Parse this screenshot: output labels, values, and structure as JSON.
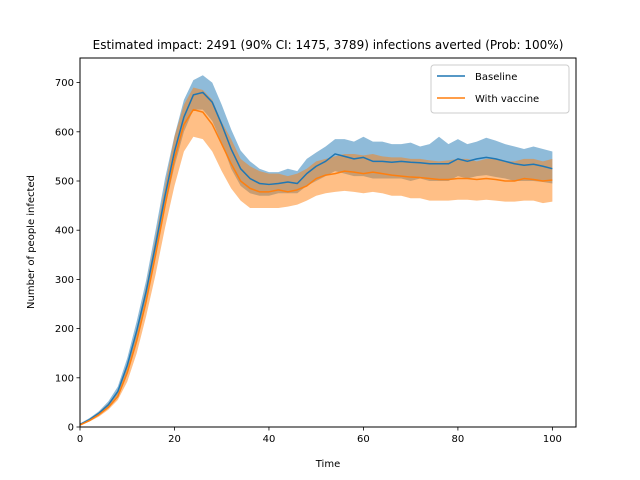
{
  "chart_data": {
    "type": "line",
    "title": "Estimated impact: 2491 (90% CI: 1475, 3789) infections averted (Prob: 100%)",
    "xlabel": "Time",
    "ylabel": "Number of people infected",
    "xlim": [
      0,
      105
    ],
    "ylim": [
      0,
      750
    ],
    "xticks": [
      "0",
      "20",
      "40",
      "60",
      "80",
      "100"
    ],
    "yticks": [
      "0",
      "100",
      "200",
      "300",
      "400",
      "500",
      "600",
      "700"
    ],
    "legend_position": "upper-right",
    "x": [
      0,
      2,
      4,
      6,
      8,
      10,
      12,
      14,
      16,
      18,
      20,
      22,
      24,
      26,
      28,
      30,
      32,
      34,
      36,
      38,
      40,
      42,
      44,
      46,
      48,
      50,
      52,
      54,
      56,
      58,
      60,
      62,
      64,
      66,
      68,
      70,
      72,
      74,
      76,
      78,
      80,
      82,
      84,
      86,
      88,
      90,
      92,
      94,
      96,
      98,
      100
    ],
    "series": [
      {
        "name": "Baseline",
        "color": "#1f77b4",
        "values": [
          5,
          15,
          28,
          45,
          72,
          125,
          195,
          275,
          370,
          470,
          560,
          630,
          675,
          680,
          660,
          615,
          565,
          525,
          505,
          495,
          493,
          495,
          498,
          495,
          515,
          530,
          540,
          555,
          550,
          545,
          548,
          540,
          540,
          538,
          540,
          538,
          537,
          535,
          535,
          535,
          545,
          540,
          545,
          548,
          545,
          540,
          535,
          532,
          534,
          530,
          525
        ],
        "lower": [
          4,
          13,
          25,
          40,
          65,
          112,
          178,
          255,
          345,
          445,
          530,
          600,
          645,
          645,
          622,
          577,
          525,
          490,
          475,
          470,
          470,
          475,
          475,
          475,
          490,
          500,
          510,
          520,
          515,
          510,
          510,
          505,
          505,
          505,
          505,
          500,
          505,
          500,
          500,
          500,
          510,
          505,
          510,
          512,
          508,
          505,
          500,
          500,
          500,
          498,
          495
        ],
        "upper": [
          7,
          18,
          32,
          52,
          82,
          140,
          215,
          298,
          400,
          505,
          592,
          665,
          705,
          715,
          700,
          655,
          605,
          562,
          540,
          525,
          518,
          518,
          525,
          520,
          545,
          558,
          570,
          585,
          585,
          580,
          590,
          580,
          580,
          575,
          575,
          578,
          570,
          575,
          590,
          575,
          585,
          575,
          580,
          588,
          582,
          575,
          570,
          565,
          570,
          565,
          560
        ]
      },
      {
        "name": "With vaccine",
        "color": "#ff7f0e",
        "values": [
          4,
          13,
          25,
          40,
          62,
          110,
          175,
          255,
          350,
          450,
          545,
          615,
          645,
          640,
          615,
          575,
          535,
          500,
          485,
          478,
          478,
          482,
          478,
          482,
          490,
          505,
          512,
          515,
          520,
          518,
          515,
          518,
          515,
          512,
          510,
          508,
          507,
          505,
          503,
          503,
          505,
          505,
          503,
          505,
          503,
          500,
          500,
          505,
          503,
          500,
          502
        ],
        "lower": [
          3,
          11,
          21,
          35,
          55,
          92,
          150,
          225,
          310,
          405,
          490,
          560,
          590,
          585,
          560,
          520,
          485,
          460,
          445,
          445,
          445,
          445,
          448,
          452,
          460,
          470,
          475,
          478,
          480,
          478,
          475,
          478,
          475,
          470,
          470,
          465,
          465,
          460,
          460,
          460,
          462,
          462,
          460,
          462,
          460,
          458,
          458,
          460,
          460,
          455,
          458
        ],
        "upper": [
          6,
          16,
          30,
          48,
          72,
          128,
          200,
          285,
          385,
          490,
          590,
          655,
          690,
          685,
          665,
          620,
          585,
          545,
          530,
          520,
          515,
          515,
          510,
          515,
          525,
          540,
          545,
          550,
          555,
          555,
          552,
          555,
          550,
          548,
          548,
          545,
          545,
          542,
          540,
          542,
          545,
          545,
          540,
          545,
          545,
          540,
          540,
          545,
          545,
          540,
          545
        ]
      }
    ]
  }
}
